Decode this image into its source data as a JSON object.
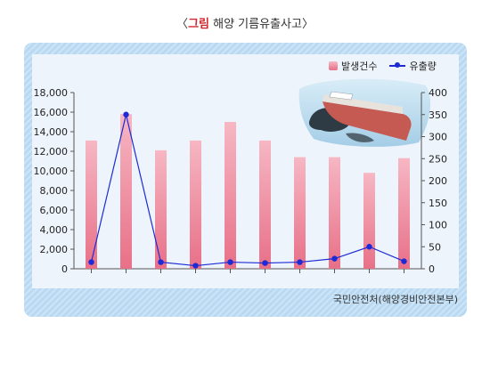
{
  "title": {
    "open_bracket": "〈",
    "highlight": "그림",
    "text": "해양 기름유출사고",
    "close_bracket": "〉"
  },
  "source": "국민안전처(해양경비안전본부)",
  "colors": {
    "bar_top": "#f6b7c3",
    "bar_bottom": "#e87088",
    "line": "#1c2bd6",
    "frame": "#b9d9f2",
    "panel": "#eef4fb"
  },
  "chart_data": {
    "type": "bar",
    "categories": [
      "",
      "",
      "",
      "",
      "",
      "",
      "",
      "",
      "",
      ""
    ],
    "series": [
      {
        "name": "발생건수",
        "type": "bar",
        "axis": "left",
        "values": [
          13100,
          15800,
          12100,
          13100,
          15000,
          13100,
          11400,
          11400,
          9800,
          11300
        ]
      },
      {
        "name": "유출량",
        "type": "line",
        "axis": "right",
        "values": [
          15,
          350,
          15,
          7,
          15,
          13,
          15,
          23,
          50,
          17
        ]
      }
    ],
    "y_left": {
      "min": 0,
      "max": 18000,
      "ticks": [
        "0",
        "2,000",
        "4,000",
        "6,000",
        "8,000",
        "10,000",
        "12,000",
        "14,000",
        "16,000",
        "18,000"
      ]
    },
    "y_right": {
      "min": 0,
      "max": 400,
      "ticks": [
        "0",
        "50",
        "100",
        "150",
        "200",
        "250",
        "300",
        "350",
        "400"
      ]
    },
    "legend": {
      "position": "top-right"
    },
    "grid": false,
    "xlabel": "",
    "ylabel": ""
  }
}
